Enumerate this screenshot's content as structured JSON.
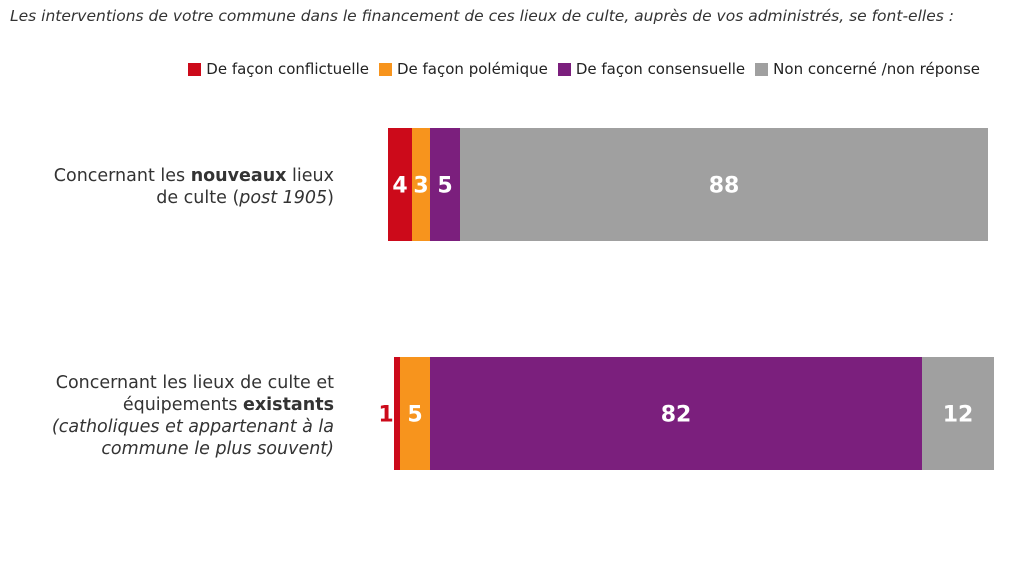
{
  "question": "Les interventions de votre commune dans le financement de ces lieux de culte, auprès de vos administrés, se font-elles :",
  "legend": [
    {
      "label": "De façon conflictuelle",
      "color": "#cc0a1a"
    },
    {
      "label": "De façon polémique",
      "color": "#f7941d"
    },
    {
      "label": "De façon consensuelle",
      "color": "#7b1f7d"
    },
    {
      "label": "Non concerné /non réponse",
      "color": "#a0a0a0"
    }
  ],
  "rows": [
    {
      "line1_a": "Concernant les ",
      "line1_bold": "nouveaux",
      "line1_b": " lieux",
      "line2_a": "de culte (",
      "line2_ital": "post 1905",
      "line2_b": ")"
    },
    {
      "line1": "Concernant les lieux de culte et",
      "line2_a": "équipements ",
      "line2_bold": "existants",
      "line3": "(catholiques et appartenant à la",
      "line4": "commune le plus souvent)"
    }
  ],
  "chart_data": {
    "type": "bar",
    "orientation": "horizontal",
    "stacked": true,
    "categories": [
      "Concernant les nouveaux lieux de culte (post 1905)",
      "Concernant les lieux de culte et équipements existants (catholiques et appartenant à la commune le plus souvent)"
    ],
    "series": [
      {
        "name": "De façon conflictuelle",
        "color": "#cc0a1a",
        "values": [
          4,
          1
        ]
      },
      {
        "name": "De façon polémique",
        "color": "#f7941d",
        "values": [
          3,
          5
        ]
      },
      {
        "name": "De façon consensuelle",
        "color": "#7b1f7d",
        "values": [
          5,
          82
        ]
      },
      {
        "name": "Non concerné /non réponse",
        "color": "#a0a0a0",
        "values": [
          88,
          12
        ]
      }
    ],
    "legend_position": "top-right",
    "grid": false
  }
}
